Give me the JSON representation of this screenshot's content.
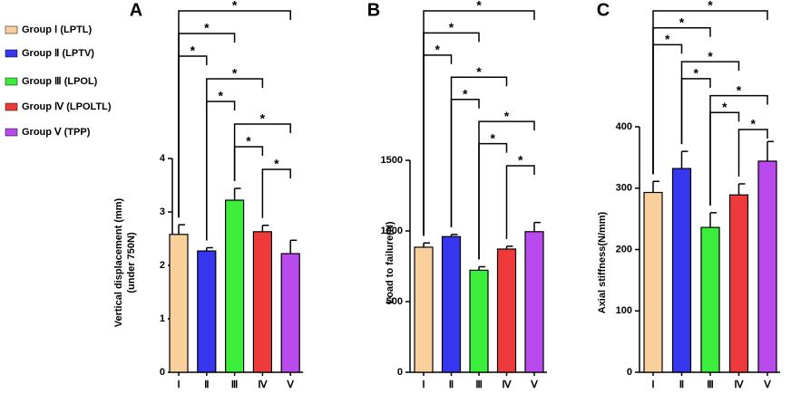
{
  "legend": [
    {
      "name": "Group Ⅰ (LPTL)",
      "color": "#f9cf9b"
    },
    {
      "name": "Group Ⅱ (LPTV)",
      "color": "#3636ee"
    },
    {
      "name": "Group Ⅲ (LPOL)",
      "color": "#3cee3c"
    },
    {
      "name": "Group Ⅳ (LPOLTL)",
      "color": "#ee3a3a"
    },
    {
      "name": "Group Ⅴ (TPP)",
      "color": "#b84aee"
    }
  ],
  "chart_data": [
    {
      "type": "bar",
      "label": "A",
      "ylabel": [
        "Vertical displacement (mm)",
        "(under 750N)"
      ],
      "categories": [
        "Ⅰ",
        "Ⅱ",
        "Ⅲ",
        "Ⅳ",
        "Ⅴ"
      ],
      "values": [
        2.58,
        2.27,
        3.22,
        2.63,
        2.22
      ],
      "errors": [
        0.18,
        0.06,
        0.22,
        0.12,
        0.25
      ],
      "colors": [
        "#f9cf9b",
        "#3636ee",
        "#3cee3c",
        "#ee3a3a",
        "#b84aee"
      ],
      "ylim": [
        0,
        4
      ],
      "yticks": [
        0,
        1,
        2,
        3,
        4
      ],
      "annotations": [
        {
          "from": "Ⅰ",
          "to": "Ⅴ",
          "text": "*"
        },
        {
          "from": "Ⅰ",
          "to": "Ⅲ",
          "text": "*"
        },
        {
          "from": "Ⅰ",
          "to": "Ⅱ",
          "text": "*"
        },
        {
          "from": "Ⅱ",
          "to": "Ⅳ",
          "text": "*"
        },
        {
          "from": "Ⅱ",
          "to": "Ⅲ",
          "text": "*"
        },
        {
          "from": "Ⅲ",
          "to": "Ⅴ",
          "text": "*"
        },
        {
          "from": "Ⅲ",
          "to": "Ⅳ",
          "text": "*"
        },
        {
          "from": "Ⅳ",
          "to": "Ⅴ",
          "text": "*"
        }
      ]
    },
    {
      "type": "bar",
      "label": "B",
      "ylabel": [
        "Load to failure(N)"
      ],
      "categories": [
        "Ⅰ",
        "Ⅱ",
        "Ⅲ",
        "Ⅳ",
        "Ⅴ"
      ],
      "values": [
        885,
        960,
        722,
        872,
        995
      ],
      "errors": [
        30,
        15,
        25,
        20,
        65
      ],
      "colors": [
        "#f9cf9b",
        "#3636ee",
        "#3cee3c",
        "#ee3a3a",
        "#b84aee"
      ],
      "ylim": [
        0,
        1500
      ],
      "yticks": [
        0,
        500,
        1000,
        1500
      ],
      "annotations": [
        {
          "from": "Ⅰ",
          "to": "Ⅴ",
          "text": "*"
        },
        {
          "from": "Ⅰ",
          "to": "Ⅲ",
          "text": "*"
        },
        {
          "from": "Ⅰ",
          "to": "Ⅱ",
          "text": "*"
        },
        {
          "from": "Ⅱ",
          "to": "Ⅳ",
          "text": "*"
        },
        {
          "from": "Ⅱ",
          "to": "Ⅲ",
          "text": "*"
        },
        {
          "from": "Ⅲ",
          "to": "Ⅴ",
          "text": "*"
        },
        {
          "from": "Ⅲ",
          "to": "Ⅳ",
          "text": "*"
        },
        {
          "from": "Ⅳ",
          "to": "Ⅴ",
          "text": "*"
        }
      ]
    },
    {
      "type": "bar",
      "label": "C",
      "ylabel": [
        "Axial stiffness(N/mm)"
      ],
      "categories": [
        "Ⅰ",
        "Ⅱ",
        "Ⅲ",
        "Ⅳ",
        "Ⅴ"
      ],
      "values": [
        293,
        332,
        236,
        289,
        344
      ],
      "errors": [
        18,
        28,
        24,
        18,
        32
      ],
      "colors": [
        "#f9cf9b",
        "#3636ee",
        "#3cee3c",
        "#ee3a3a",
        "#b84aee"
      ],
      "ylim": [
        0,
        400
      ],
      "yticks": [
        0,
        100,
        200,
        300,
        400
      ],
      "annotations": [
        {
          "from": "Ⅰ",
          "to": "Ⅴ",
          "text": "*"
        },
        {
          "from": "Ⅰ",
          "to": "Ⅲ",
          "text": "*"
        },
        {
          "from": "Ⅰ",
          "to": "Ⅱ",
          "text": "*"
        },
        {
          "from": "Ⅱ",
          "to": "Ⅳ",
          "text": "*"
        },
        {
          "from": "Ⅱ",
          "to": "Ⅲ",
          "text": "*"
        },
        {
          "from": "Ⅲ",
          "to": "Ⅴ",
          "text": "*"
        },
        {
          "from": "Ⅲ",
          "to": "Ⅳ",
          "text": "*"
        },
        {
          "from": "Ⅳ",
          "to": "Ⅴ",
          "text": "*"
        }
      ]
    }
  ]
}
